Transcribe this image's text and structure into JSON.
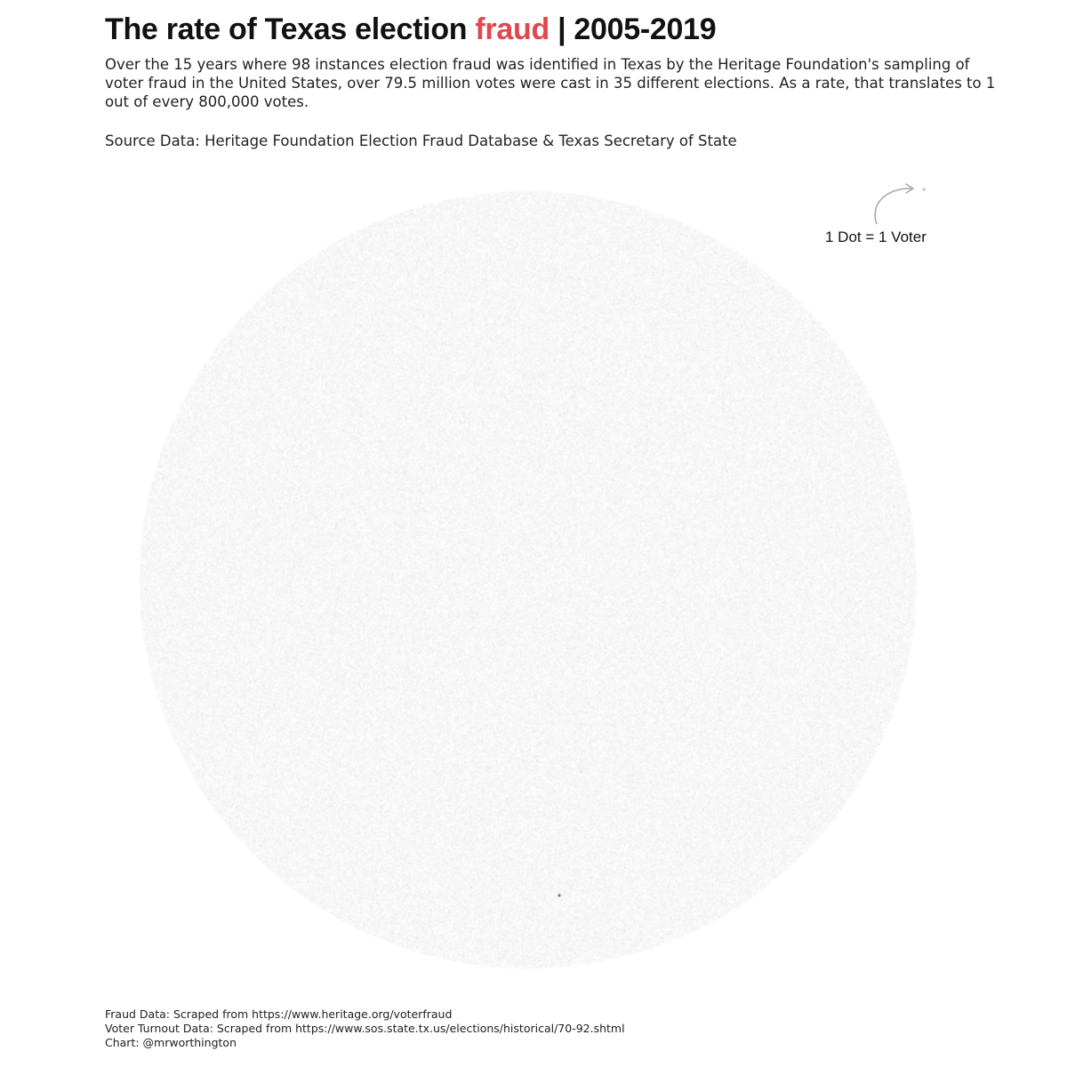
{
  "header": {
    "title_before": "The rate of Texas election ",
    "title_highlight": "fraud",
    "title_after": " | 2005-2019",
    "highlight_color": "#e0484e",
    "description": "Over the 15 years where 98 instances election fraud was identified in Texas by the Heritage Foundation's sampling of voter fraud in the United States, over 79.5 million votes were cast in 35 different elections. As a rate, that translates to 1 out of every 800,000 votes.",
    "source": "Source Data: Heritage Foundation Election Fraud Database & Texas Secretary of State"
  },
  "legend": {
    "label": "1 Dot = 1 Voter",
    "dot_color": "#bdbdbd"
  },
  "footer": {
    "fraud_data": "Fraud Data: Scraped from https://www.heritage.org/voterfraud",
    "turnout_data": "Voter Turnout Data: Scraped from https://www.sos.state.tx.us/elections/historical/70-92.shtml",
    "credit": "Chart: @mrworthington"
  },
  "chart_data": {
    "type": "scatter",
    "shape": "circle-packed dots",
    "total_dots": 800000,
    "highlighted_dots": 1,
    "dot_color": "#c9c9c9",
    "highlight_color": "#e0484e",
    "rate": "1 out of every 800,000 votes",
    "legend": "1 Dot = 1 Voter"
  }
}
